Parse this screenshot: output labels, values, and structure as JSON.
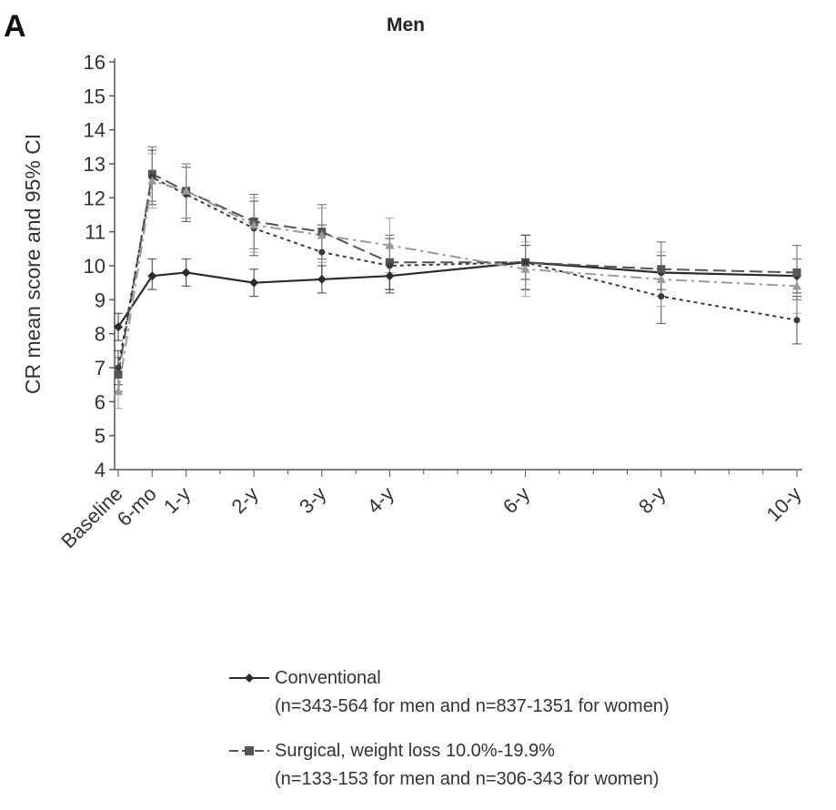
{
  "panel_label": "A",
  "chart_data": {
    "type": "line",
    "title": "Men",
    "xlabel": "",
    "ylabel": "CR mean score and 95% CI",
    "ylim": [
      4,
      16
    ],
    "yticks": [
      4,
      5,
      6,
      7,
      8,
      9,
      10,
      11,
      12,
      13,
      14,
      15,
      16
    ],
    "grid": false,
    "categories": [
      "Baseline",
      "6-mo",
      "1-y",
      "2-y",
      "3-y",
      "4-y",
      "6-y",
      "8-y",
      "10-y"
    ],
    "x_years": [
      0,
      0.5,
      1,
      2,
      3,
      4,
      6,
      8,
      10
    ],
    "series": [
      {
        "name": "Conventional",
        "legend_note": "(n=343-564 for men and n=837-1351 for women)",
        "color": "#2b2b2b",
        "style": "solid",
        "marker": "diamond",
        "values": [
          8.2,
          9.7,
          9.8,
          9.5,
          9.6,
          9.7,
          10.1,
          9.8,
          9.7
        ],
        "ci_low": [
          7.8,
          9.3,
          9.4,
          9.1,
          9.2,
          9.3,
          9.6,
          9.3,
          9.2
        ],
        "ci_high": [
          8.6,
          10.2,
          10.2,
          9.9,
          10.0,
          10.1,
          10.6,
          10.3,
          10.2
        ]
      },
      {
        "name": "Surgical, weight loss 10.0%-19.9%",
        "legend_note": "(n=133-153 for men and n=306-343 for women)",
        "color": "#555555",
        "style": "longdash",
        "marker": "square",
        "values": [
          6.8,
          12.7,
          12.2,
          11.3,
          11.0,
          10.1,
          10.1,
          9.9,
          9.8
        ],
        "ci_low": [
          6.3,
          11.9,
          11.4,
          10.5,
          10.2,
          9.3,
          9.3,
          9.1,
          9.0
        ],
        "ci_high": [
          7.3,
          13.5,
          13.0,
          12.1,
          11.8,
          10.9,
          10.9,
          10.7,
          10.6
        ]
      },
      {
        "name": "",
        "color": "#3a3a3a",
        "style": "dotted",
        "marker": "circle",
        "values": [
          7.0,
          12.6,
          12.1,
          11.1,
          10.4,
          10.0,
          10.1,
          9.1,
          8.4
        ],
        "ci_low": [
          6.5,
          11.8,
          11.3,
          10.3,
          9.6,
          9.2,
          9.3,
          8.3,
          7.7
        ],
        "ci_high": [
          7.5,
          13.4,
          12.9,
          11.9,
          11.2,
          10.8,
          10.9,
          9.9,
          9.1
        ]
      },
      {
        "name": "",
        "color": "#9a9a9a",
        "style": "dashdot",
        "marker": "triangle",
        "values": [
          6.3,
          12.5,
          12.2,
          11.2,
          10.9,
          10.6,
          9.9,
          9.6,
          9.4
        ],
        "ci_low": [
          5.8,
          11.7,
          11.4,
          10.4,
          10.1,
          9.8,
          9.1,
          8.8,
          8.6
        ],
        "ci_high": [
          6.8,
          13.3,
          13.0,
          12.0,
          11.7,
          11.4,
          10.7,
          10.4,
          10.2
        ]
      }
    ]
  }
}
